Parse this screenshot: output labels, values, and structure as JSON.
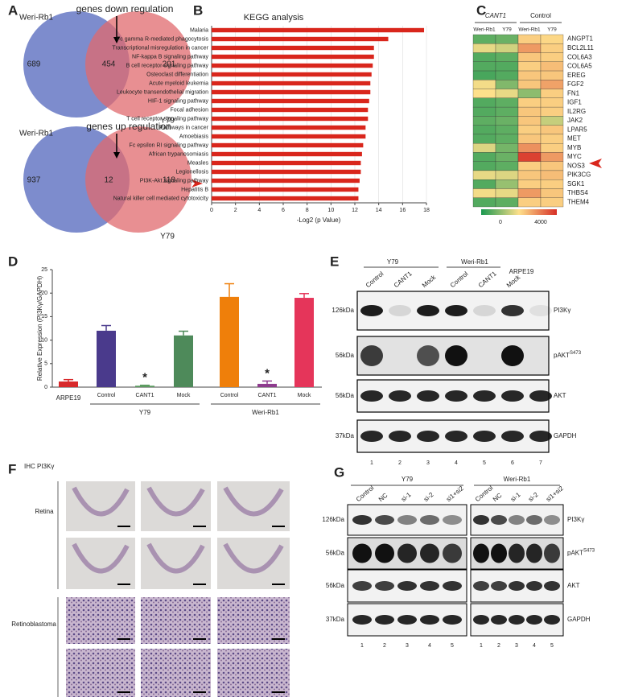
{
  "panel_labels": [
    "A",
    "B",
    "C",
    "D",
    "E",
    "F",
    "G"
  ],
  "venn": [
    {
      "title": "genes down regulation",
      "sets": [
        "Weri-Rb1",
        "Y79"
      ],
      "counts": [
        689,
        454,
        201
      ]
    },
    {
      "title": "genes up regulation",
      "sets": [
        "Weri-Rb1",
        "Y79"
      ],
      "counts": [
        937,
        12,
        118
      ]
    }
  ],
  "chart_data": [
    {
      "type": "hbar",
      "title": "KEGG analysis",
      "xlabel": "-Log2 (p Value)",
      "color": "#d9261c",
      "categories": [
        "Malaria",
        "Fc gamma R-mediated phagocytosis",
        "Transcriptional misregulation in cancer",
        "NF-kappa B signaling pathway",
        "B cell receptor signaling pathway",
        "Osteoclast differentiation",
        "Acute myeloid leukemia",
        "Leukocyte transendothelial migration",
        "HIF-1 signaling pathway",
        "Focal adhesion",
        "T cell receptor signaling pathway",
        "Pathways in cancer",
        "Amoebiasis",
        "Fc epsilon RI signaling pathway",
        "African trypanosomiasis",
        "Measles",
        "Legionellosis",
        "PI3K-Akt signaling pathway",
        "Hepatitis B",
        "Natural killer cell mediated cytotoxicity"
      ],
      "values": [
        17.8,
        14.8,
        13.6,
        13.6,
        13.5,
        13.4,
        13.3,
        13.3,
        13.2,
        13.1,
        13.1,
        12.9,
        12.9,
        12.7,
        12.6,
        12.5,
        12.5,
        12.4,
        12.3,
        12.3
      ],
      "xlim": [
        0,
        18
      ],
      "xticks": [
        0,
        2,
        4,
        6,
        8,
        10,
        12,
        14,
        16,
        18
      ],
      "grid": true
    },
    {
      "type": "bar",
      "ylabel": "Relative Expression (PI3Kγ/GAPDH)",
      "categories": [
        "ARPE19",
        "Control",
        "CANT1",
        "Mock",
        "Control",
        "CANT1",
        "Mock"
      ],
      "values": [
        1.2,
        12,
        0.3,
        11,
        19.2,
        0.7,
        19
      ],
      "errors": [
        0.4,
        1.1,
        0.1,
        0.9,
        2.8,
        0.6,
        0.9
      ],
      "colors": [
        "#d8292b",
        "#4a3a8c",
        "#5a9a5e",
        "#4e8a5a",
        "#ef7f0a",
        "#8e3b8e",
        "#e5355a"
      ],
      "annotations": [
        "*",
        "*"
      ],
      "group_labels": [
        "Y79",
        "Weri-Rb1"
      ],
      "ylim": [
        0,
        25
      ],
      "yticks": [
        0,
        5,
        10,
        15,
        20,
        25
      ]
    }
  ],
  "heatmap": {
    "group_labels": [
      "CANT1",
      "Control"
    ],
    "columns": [
      "Weri-Rb1",
      "Y79",
      "Weri-Rb1",
      "Y79"
    ],
    "rows": [
      "ANGPT1",
      "BCL2L11",
      "COL6A3",
      "COL6A5",
      "EREG",
      "FGF2",
      "FN1",
      "IGF1",
      "IL2RG",
      "JAK2",
      "LPAR5",
      "MET",
      "MYB",
      "MYC",
      "NOS3",
      "PIK3CG",
      "SGK1",
      "THBS4",
      "THEM4"
    ],
    "values": [
      [
        600,
        700,
        2200,
        2100
      ],
      [
        1800,
        1600,
        2800,
        2200
      ],
      [
        500,
        600,
        2300,
        2200
      ],
      [
        500,
        500,
        2200,
        2400
      ],
      [
        400,
        500,
        2300,
        2300
      ],
      [
        1900,
        900,
        2300,
        2700
      ],
      [
        2000,
        1800,
        1000,
        2200
      ],
      [
        500,
        600,
        2200,
        2200
      ],
      [
        500,
        600,
        2300,
        2200
      ],
      [
        600,
        700,
        2300,
        1500
      ],
      [
        500,
        600,
        2200,
        2300
      ],
      [
        500,
        600,
        2300,
        2200
      ],
      [
        1700,
        800,
        2900,
        2200
      ],
      [
        500,
        700,
        3800,
        2800
      ],
      [
        500,
        600,
        2200,
        2300
      ],
      [
        1800,
        1700,
        2300,
        2400
      ],
      [
        500,
        1100,
        2200,
        2200
      ],
      [
        1900,
        1800,
        2800,
        2300
      ],
      [
        500,
        600,
        2200,
        2200
      ]
    ],
    "colorbar_ticks": [
      0,
      4000
    ]
  },
  "blot_e": {
    "groups": [
      "Y79",
      "Weri-Rb1",
      "ARPE19"
    ],
    "lanes": [
      "Control",
      "CANT1",
      "Mock",
      "Control",
      "CANT1",
      "Mock"
    ],
    "markers": [
      "126kDa",
      "56kDa",
      "56kDa",
      "37kDa"
    ],
    "proteins": [
      {
        "name": "PI3Kγ"
      },
      {
        "name": "pAKT",
        "sup": "S473"
      },
      {
        "name": "AKT"
      },
      {
        "name": "GAPDH"
      }
    ],
    "lane_numbers": [
      1,
      2,
      3,
      4,
      5,
      6,
      7
    ]
  },
  "ihc": {
    "title": "IHC PI3Kγ",
    "row_groups": [
      "Retina",
      "Retinoblastoma"
    ]
  },
  "blot_g": {
    "groups": [
      "Y79",
      "Weri-Rb1"
    ],
    "lanes": [
      "Control",
      "NC",
      "si-1",
      "si-2",
      "si1+si2"
    ],
    "markers": [
      "126kDa",
      "56kDa",
      "56kDa",
      "37kDa"
    ],
    "proteins": [
      {
        "name": "PI3Kγ"
      },
      {
        "name": "pAKT",
        "sup": "S473"
      },
      {
        "name": "AKT"
      },
      {
        "name": "GAPDH"
      }
    ],
    "lane_numbers": [
      1,
      2,
      3,
      4,
      5
    ]
  }
}
